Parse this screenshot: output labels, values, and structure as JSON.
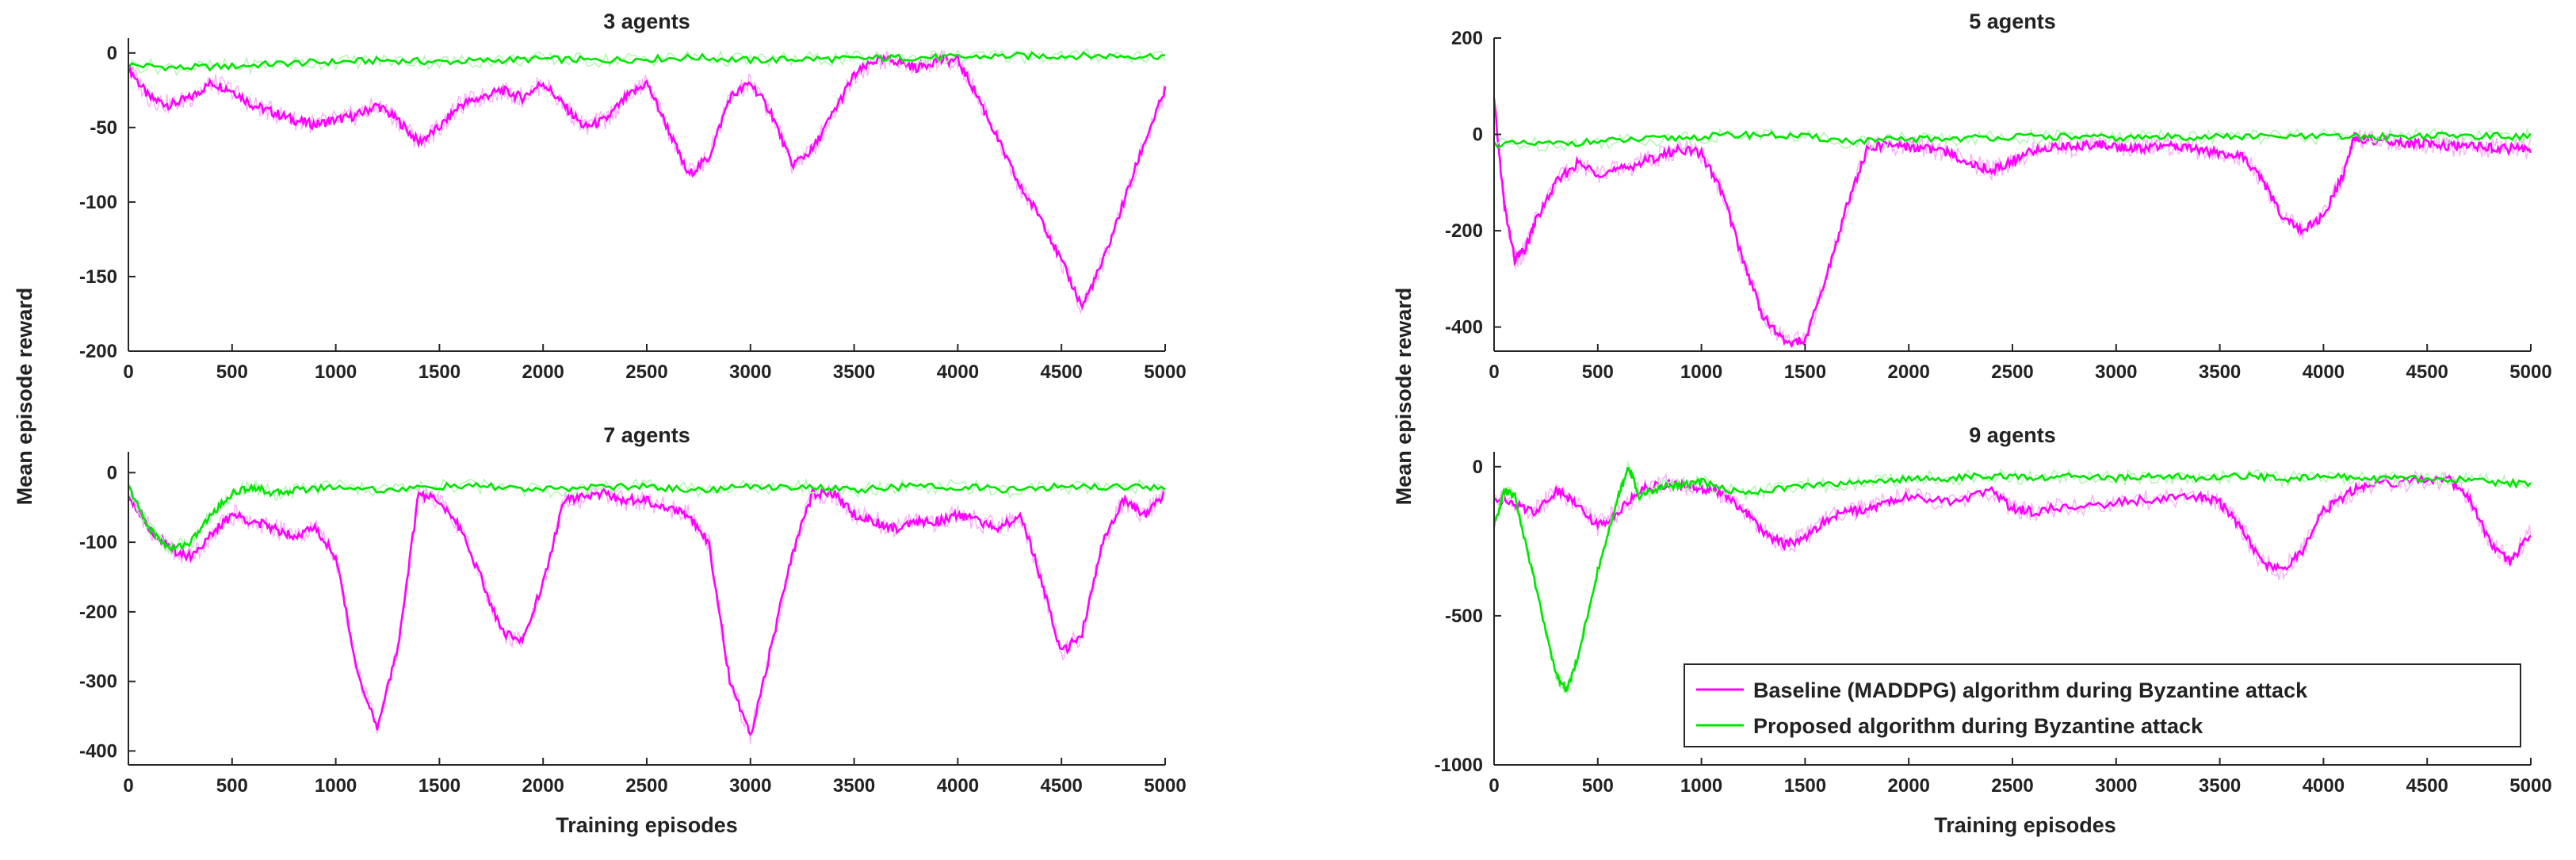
{
  "colors": {
    "baseline": "#ff00ff",
    "proposed": "#00e600",
    "baseline_shadow": "#f7b3f7",
    "proposed_shadow": "#b3f5b3",
    "axis": "#262626"
  },
  "figure": {
    "ylabel_left": "Mean episode reward",
    "ylabel_right": "Mean episode reward",
    "xlabel_left": "Training episodes",
    "xlabel_right": "Training episodes",
    "legend": {
      "placement": "bottom-right of 9 agents panel",
      "entries": [
        "Baseline (MADDPG) algorithm during Byzantine attack",
        "Proposed algorithm during Byzantine attack"
      ]
    }
  },
  "chart_data": [
    {
      "type": "line",
      "title": "3 agents",
      "xlim": [
        0,
        5000
      ],
      "ylim": [
        -200,
        10
      ],
      "xticks": [
        "0",
        "500",
        "1000",
        "1500",
        "2000",
        "2500",
        "3000",
        "3500",
        "4000",
        "4500",
        "5000"
      ],
      "yticks": [
        "0",
        "-50",
        "-100",
        "-150",
        "-200"
      ],
      "series": [
        {
          "name": "Baseline (MADDPG) algorithm during Byzantine attack",
          "x": [
            0,
            100,
            200,
            300,
            400,
            500,
            600,
            700,
            800,
            900,
            1000,
            1100,
            1200,
            1300,
            1400,
            1500,
            1600,
            1700,
            1800,
            1900,
            2000,
            2100,
            2200,
            2300,
            2400,
            2500,
            2600,
            2700,
            2800,
            2900,
            3000,
            3100,
            3200,
            3300,
            3400,
            3500,
            3600,
            3700,
            3800,
            3900,
            4000,
            4100,
            4200,
            4300,
            4400,
            4500,
            4600,
            4700,
            4800,
            4900,
            5000
          ],
          "y": [
            -10,
            -30,
            -35,
            -30,
            -20,
            -25,
            -35,
            -40,
            -45,
            -48,
            -45,
            -42,
            -35,
            -45,
            -60,
            -50,
            -35,
            -30,
            -25,
            -30,
            -20,
            -35,
            -50,
            -45,
            -30,
            -20,
            -50,
            -82,
            -70,
            -30,
            -20,
            -40,
            -75,
            -65,
            -40,
            -15,
            -5,
            -5,
            -10,
            -5,
            -5,
            -30,
            -60,
            -90,
            -110,
            -140,
            -170,
            -140,
            -100,
            -60,
            -25
          ]
        },
        {
          "name": "Proposed algorithm during Byzantine attack",
          "x": [
            0,
            250,
            500,
            750,
            1000,
            1250,
            1500,
            1750,
            2000,
            2250,
            2500,
            2750,
            3000,
            3250,
            3500,
            3750,
            4000,
            4250,
            4500,
            4750,
            5000
          ],
          "y": [
            -8,
            -10,
            -9,
            -7,
            -6,
            -5,
            -6,
            -5,
            -4,
            -5,
            -4,
            -3,
            -5,
            -4,
            -4,
            -3,
            -3,
            -2,
            -2,
            -2,
            -2
          ]
        }
      ]
    },
    {
      "type": "line",
      "title": "5 agents",
      "xlim": [
        0,
        5000
      ],
      "ylim": [
        -450,
        200
      ],
      "xticks": [
        "0",
        "500",
        "1000",
        "1500",
        "2000",
        "2500",
        "3000",
        "3500",
        "4000",
        "4500",
        "5000"
      ],
      "yticks": [
        "200",
        "0",
        "-200",
        "-400"
      ],
      "series": [
        {
          "name": "Baseline (MADDPG) algorithm during Byzantine attack",
          "x": [
            0,
            50,
            100,
            150,
            200,
            300,
            400,
            500,
            600,
            700,
            800,
            900,
            1000,
            1100,
            1200,
            1300,
            1400,
            1500,
            1600,
            1700,
            1800,
            1900,
            2000,
            2100,
            2200,
            2300,
            2400,
            2500,
            2600,
            2700,
            2800,
            2900,
            3000,
            3100,
            3200,
            3300,
            3400,
            3500,
            3600,
            3700,
            3800,
            3900,
            4000,
            4100,
            4150,
            4200,
            4300,
            4400,
            4500,
            4600,
            4700,
            4800,
            4900,
            5000
          ],
          "y": [
            70,
            -150,
            -260,
            -240,
            -180,
            -100,
            -60,
            -80,
            -75,
            -60,
            -45,
            -30,
            -40,
            -120,
            -260,
            -380,
            -430,
            -430,
            -300,
            -150,
            -30,
            -20,
            -25,
            -30,
            -40,
            -60,
            -75,
            -55,
            -35,
            -25,
            -25,
            -20,
            -25,
            -30,
            -25,
            -25,
            -30,
            -40,
            -45,
            -90,
            -170,
            -200,
            -170,
            -80,
            -5,
            -10,
            -15,
            -20,
            -20,
            -25,
            -25,
            -28,
            -30,
            -30
          ]
        },
        {
          "name": "Proposed algorithm during Byzantine attack",
          "x": [
            0,
            250,
            500,
            750,
            1000,
            1250,
            1500,
            1750,
            2000,
            2250,
            2500,
            2750,
            3000,
            3250,
            3500,
            3750,
            4000,
            4250,
            4500,
            4750,
            5000
          ],
          "y": [
            -20,
            -20,
            -15,
            -10,
            -5,
            0,
            -5,
            -15,
            -10,
            -8,
            -5,
            -5,
            -8,
            -5,
            -5,
            -5,
            -5,
            -5,
            -3,
            -3,
            -5
          ]
        }
      ]
    },
    {
      "type": "line",
      "title": "7 agents",
      "xlim": [
        0,
        5000
      ],
      "ylim": [
        -420,
        30
      ],
      "xticks": [
        "0",
        "500",
        "1000",
        "1500",
        "2000",
        "2500",
        "3000",
        "3500",
        "4000",
        "4500",
        "5000"
      ],
      "yticks": [
        "0",
        "-100",
        "-200",
        "-300",
        "-400"
      ],
      "series": [
        {
          "name": "Baseline (MADDPG) algorithm during Byzantine attack",
          "x": [
            0,
            100,
            200,
            300,
            400,
            500,
            600,
            700,
            800,
            900,
            1000,
            1100,
            1200,
            1300,
            1400,
            1500,
            1600,
            1700,
            1800,
            1900,
            2000,
            2100,
            2200,
            2300,
            2400,
            2500,
            2600,
            2700,
            2800,
            2900,
            3000,
            3100,
            3200,
            3300,
            3400,
            3500,
            3600,
            3700,
            3800,
            3900,
            4000,
            4100,
            4200,
            4300,
            4400,
            4500,
            4600,
            4700,
            4800,
            4900,
            5000
          ],
          "y": [
            -30,
            -80,
            -110,
            -120,
            -90,
            -60,
            -70,
            -80,
            -90,
            -80,
            -120,
            -280,
            -370,
            -250,
            -30,
            -40,
            -80,
            -150,
            -230,
            -240,
            -160,
            -40,
            -35,
            -30,
            -40,
            -40,
            -50,
            -60,
            -100,
            -300,
            -380,
            -250,
            -120,
            -30,
            -30,
            -60,
            -70,
            -80,
            -70,
            -70,
            -60,
            -70,
            -80,
            -60,
            -150,
            -260,
            -230,
            -100,
            -40,
            -60,
            -30
          ]
        },
        {
          "name": "Proposed algorithm during Byzantine attack",
          "x": [
            0,
            100,
            200,
            300,
            400,
            500,
            600,
            700,
            800,
            1000,
            1250,
            1500,
            1750,
            2000,
            2250,
            2500,
            2750,
            3000,
            3250,
            3500,
            3750,
            4000,
            4250,
            4500,
            4750,
            5000
          ],
          "y": [
            -20,
            -80,
            -110,
            -100,
            -60,
            -30,
            -20,
            -30,
            -25,
            -20,
            -25,
            -20,
            -20,
            -25,
            -20,
            -20,
            -25,
            -20,
            -20,
            -25,
            -20,
            -20,
            -25,
            -20,
            -20,
            -20
          ]
        }
      ]
    },
    {
      "type": "line",
      "title": "9 agents",
      "xlim": [
        0,
        5000
      ],
      "ylim": [
        -1000,
        50
      ],
      "xticks": [
        "0",
        "500",
        "1000",
        "1500",
        "2000",
        "2500",
        "3000",
        "3500",
        "4000",
        "4500",
        "5000"
      ],
      "yticks": [
        "0",
        "-500",
        "-1000"
      ],
      "series": [
        {
          "name": "Baseline (MADDPG) algorithm during Byzantine attack",
          "x": [
            0,
            100,
            200,
            300,
            400,
            500,
            600,
            700,
            800,
            900,
            1000,
            1100,
            1200,
            1300,
            1400,
            1500,
            1600,
            1700,
            1800,
            1900,
            2000,
            2200,
            2400,
            2500,
            2600,
            2800,
            3000,
            3200,
            3400,
            3500,
            3600,
            3700,
            3800,
            3900,
            4000,
            4100,
            4200,
            4400,
            4600,
            4700,
            4800,
            4900,
            5000
          ],
          "y": [
            -100,
            -130,
            -150,
            -80,
            -120,
            -200,
            -150,
            -80,
            -60,
            -60,
            -70,
            -90,
            -140,
            -220,
            -260,
            -240,
            -180,
            -150,
            -140,
            -120,
            -100,
            -120,
            -80,
            -140,
            -150,
            -130,
            -120,
            -110,
            -100,
            -120,
            -200,
            -320,
            -350,
            -280,
            -150,
            -100,
            -60,
            -50,
            -40,
            -100,
            -250,
            -320,
            -220
          ]
        },
        {
          "name": "Proposed algorithm during Byzantine attack",
          "x": [
            0,
            50,
            100,
            200,
            300,
            350,
            400,
            500,
            600,
            650,
            700,
            800,
            900,
            1000,
            1200,
            1400,
            1600,
            1800,
            2000,
            2200,
            2400,
            2600,
            2800,
            3000,
            3200,
            3400,
            3600,
            3800,
            4000,
            4200,
            4400,
            4600,
            4800,
            5000
          ],
          "y": [
            -200,
            -80,
            -100,
            -400,
            -700,
            -750,
            -650,
            -350,
            -100,
            0,
            -100,
            -70,
            -60,
            -50,
            -90,
            -70,
            -60,
            -50,
            -40,
            -40,
            -30,
            -40,
            -30,
            -40,
            -30,
            -40,
            -30,
            -40,
            -30,
            -40,
            -40,
            -40,
            -50,
            -60
          ]
        }
      ]
    }
  ]
}
